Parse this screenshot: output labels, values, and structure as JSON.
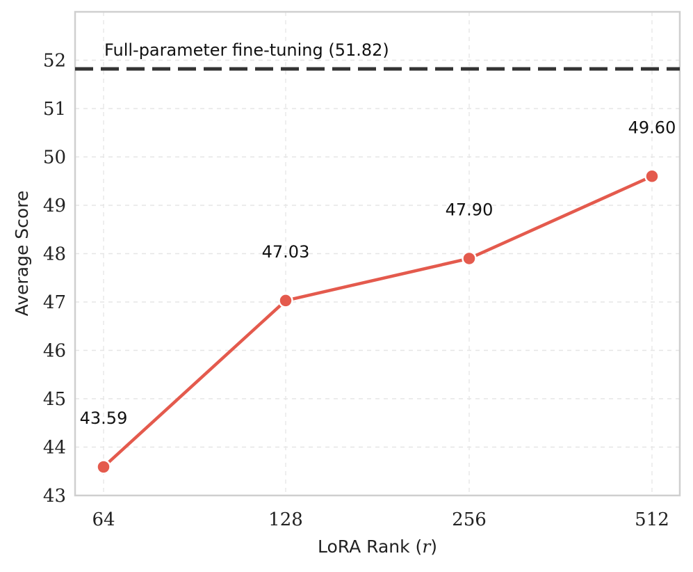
{
  "chart_data": {
    "type": "line",
    "xlabel": "LoRA Rank",
    "xlabel_var": "r",
    "ylabel": "Average Score",
    "categories": [
      "64",
      "128",
      "256",
      "512"
    ],
    "series": [
      {
        "values": [
          43.59,
          47.03,
          47.9,
          49.6
        ],
        "labels": [
          "43.59",
          "47.03",
          "47.90",
          "49.60"
        ],
        "color": "#e45a4d"
      }
    ],
    "reference_line": {
      "value": 51.82,
      "label": "Full-parameter fine-tuning (51.82)",
      "color": "#333333",
      "style": "dashed"
    },
    "ylim": [
      43,
      53
    ],
    "yticks": [
      43,
      44,
      45,
      46,
      47,
      48,
      49,
      50,
      51,
      52
    ],
    "grid": true
  }
}
